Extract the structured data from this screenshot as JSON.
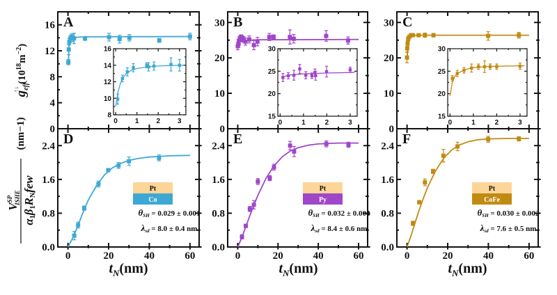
{
  "chart_data": [
    {
      "panel": "A",
      "type": "scatter",
      "color": "#3ea8d5",
      "xlim": [
        -5,
        64.5
      ],
      "ylim": [
        0,
        18
      ],
      "yticks": [
        0,
        4,
        8,
        12,
        16
      ],
      "xticks": [
        0,
        20,
        40,
        60
      ],
      "xtick_labels": false,
      "ylabel": {
        "main": "g",
        "sub": "eff",
        "sup": "↑↓",
        "unit": "(10",
        "unit_sup": "18",
        "unit_end": "m",
        "unit_end_sup": "−2",
        ")": ")"
      },
      "points": {
        "x": [
          0.2,
          0.4,
          0.7,
          1.2,
          1.8,
          2.5,
          3,
          8.4,
          20.2,
          25.4,
          30.2,
          44.9,
          60
        ],
        "y": [
          10.25,
          12.2,
          13.4,
          13.9,
          14.1,
          14.0,
          13.9,
          13.9,
          14.1,
          13.8,
          14.0,
          13.6,
          14.2
        ],
        "err": [
          0.4,
          0.8,
          0.5,
          0.5,
          0.5,
          0.6,
          0.8,
          0.3,
          0.6,
          0.6,
          0.5,
          0.3,
          0.5
        ]
      },
      "fit": {
        "x": [
          0.2,
          0.5,
          1,
          2,
          3,
          5,
          10,
          60
        ],
        "y": [
          10.0,
          12.5,
          13.5,
          13.9,
          14.0,
          14.1,
          14.15,
          14.2
        ]
      },
      "inset": {
        "xlim": [
          -0.1,
          3.3
        ],
        "ylim": [
          8,
          16
        ],
        "xticks": [
          0,
          1,
          2,
          3
        ],
        "yticks": [
          8,
          10,
          12,
          14,
          16
        ],
        "points": {
          "x": [
            0.1,
            0.32,
            0.55,
            0.83,
            1.46,
            1.55,
            1.8,
            2.6,
            3.0
          ],
          "y": [
            9.9,
            12.4,
            13.2,
            13.7,
            14.0,
            13.8,
            13.9,
            14.1,
            14.0
          ],
          "err": [
            0.6,
            0.4,
            0.5,
            0.5,
            0.3,
            0.5,
            0.5,
            0.8,
            0.7
          ]
        },
        "fit": {
          "x": [
            0,
            0.1,
            0.2,
            0.3,
            0.5,
            0.75,
            1,
            1.5,
            2,
            2.5,
            3,
            3.2
          ],
          "y": [
            9.0,
            10.6,
            11.6,
            12.3,
            13.0,
            13.4,
            13.6,
            13.8,
            13.9,
            13.95,
            14.0,
            14.0
          ]
        }
      }
    },
    {
      "panel": "B",
      "type": "scatter",
      "color": "#a046c8",
      "xlim": [
        -5,
        64.5
      ],
      "ylim": [
        0,
        33
      ],
      "yticks": [
        0,
        10,
        20,
        30
      ],
      "xticks": [
        0,
        20,
        40,
        60
      ],
      "xtick_labels": false,
      "points": {
        "x": [
          0,
          0.4,
          0.6,
          1.2,
          1.7,
          2.3,
          2.9,
          3.8,
          5.7,
          8,
          9.8,
          15.7,
          17.8,
          25.9,
          27.8,
          43.9,
          54.8
        ],
        "y": [
          23.3,
          23.9,
          24.9,
          25.5,
          25.9,
          25.4,
          25.2,
          24.6,
          25.2,
          23.6,
          24.6,
          25.9,
          25.9,
          25.9,
          25.4,
          26.2,
          24.9
        ],
        "err": [
          1,
          1,
          1,
          0.8,
          0.6,
          0.8,
          0.8,
          1,
          1,
          1.3,
          1.2,
          1,
          0.6,
          2,
          1.2,
          1.5,
          1
        ]
      },
      "fit": {
        "x": [
          0,
          1,
          3,
          10,
          60
        ],
        "y": [
          23.8,
          24.5,
          24.9,
          25.1,
          25.2
        ]
      },
      "inset": {
        "xlim": [
          -0.1,
          3.3
        ],
        "ylim": [
          15,
          30
        ],
        "xticks": [
          0,
          1,
          2,
          3
        ],
        "yticks": [
          15,
          20,
          25,
          30
        ],
        "points": {
          "x": [
            0.12,
            0.35,
            0.59,
            0.84,
            1.1,
            1.36,
            1.49,
            1.52,
            1.99,
            3.0
          ],
          "y": [
            23.6,
            24.0,
            24.1,
            25.5,
            24.1,
            24.0,
            24.7,
            24.0,
            24.9,
            25.3
          ],
          "err": [
            0.9,
            0.7,
            1.1,
            1.0,
            0.8,
            0.6,
            0.8,
            1.0,
            1.2,
            0.6
          ]
        },
        "fit": {
          "x": [
            0.1,
            0.5,
            1,
            1.5,
            2,
            3,
            3.2
          ],
          "y": [
            23.8,
            24.2,
            24.4,
            24.5,
            24.6,
            24.7,
            24.75
          ]
        }
      }
    },
    {
      "panel": "C",
      "type": "scatter",
      "color": "#c18b12",
      "xlim": [
        -5,
        64.5
      ],
      "ylim": [
        0,
        33
      ],
      "yticks": [
        0,
        10,
        20,
        30
      ],
      "xticks": [
        0,
        20,
        40,
        60
      ],
      "xtick_labels": false,
      "points": {
        "x": [
          0,
          0.1,
          0.3,
          0.6,
          1.2,
          2,
          2.9,
          5.7,
          8.8,
          13,
          39.9,
          55
        ],
        "y": [
          20.1,
          22.7,
          24.1,
          25.4,
          26.0,
          26.4,
          26.4,
          26.4,
          26.4,
          26.4,
          26.2,
          26.4
        ],
        "err": [
          1.5,
          1,
          0.8,
          0.6,
          0.5,
          0.5,
          0.4,
          0.4,
          0.6,
          0.5,
          1.2,
          0.8
        ]
      },
      "fit": {
        "x": [
          0,
          0.5,
          1,
          2,
          3,
          5,
          60
        ],
        "y": [
          19.5,
          24.5,
          25.6,
          26.1,
          26.3,
          26.4,
          26.4
        ]
      },
      "inset": {
        "xlim": [
          -0.1,
          3.3
        ],
        "ylim": [
          15,
          30
        ],
        "xticks": [
          0,
          1,
          2,
          3
        ],
        "yticks": [
          15,
          20,
          25,
          30
        ],
        "points": {
          "x": [
            0.1,
            0.31,
            0.6,
            0.92,
            1.22,
            1.48,
            1.72,
            2.0,
            3.0
          ],
          "y": [
            23.4,
            24.5,
            25.2,
            25.7,
            26.0,
            26.0,
            26.0,
            26.0,
            26.1
          ],
          "err": [
            0.6,
            0.7,
            0.6,
            0.9,
            0.6,
            1.3,
            0.6,
            0.6,
            0.7
          ]
        },
        "fit": {
          "x": [
            0,
            0.1,
            0.2,
            0.3,
            0.5,
            0.75,
            1,
            1.5,
            2,
            3,
            3.2
          ],
          "y": [
            19.5,
            22.6,
            23.8,
            24.4,
            25.0,
            25.5,
            25.8,
            26.0,
            26.1,
            26.2,
            26.2
          ]
        }
      }
    },
    {
      "panel": "D",
      "type": "scatter",
      "color": "#3ea8d5",
      "xlim": [
        -5,
        64.5
      ],
      "ylim": [
        0,
        2.8
      ],
      "yticks": [
        0,
        0.8,
        1.6,
        2.4
      ],
      "ytick_text": [
        "0.0",
        "0.8",
        "1.6",
        "2.4"
      ],
      "xticks": [
        0,
        20,
        40,
        60
      ],
      "xtick_labels": true,
      "points": {
        "x": [
          3.1,
          5,
          8,
          15,
          19.8,
          24.9,
          30,
          44.8
        ],
        "y": [
          0.27,
          0.52,
          0.92,
          1.49,
          1.82,
          1.93,
          2.03,
          2.11
        ],
        "err": [
          0.1,
          0.07,
          0.05,
          0.07,
          0.04,
          0.07,
          0.1,
          0.07
        ]
      },
      "fit": {
        "x": [
          0,
          2,
          4,
          6,
          8,
          10,
          14,
          18,
          22,
          26,
          30,
          35,
          40,
          50,
          60
        ],
        "y": [
          0,
          0.18,
          0.4,
          0.64,
          0.89,
          1.11,
          1.45,
          1.71,
          1.88,
          1.98,
          2.05,
          2.1,
          2.13,
          2.16,
          2.17
        ]
      },
      "legend": {
        "top": "Pt",
        "bottom": "Co",
        "top_color": "#fdd597"
      },
      "theta": {
        "symbol": "θ",
        "sub": "SH",
        "value": " = 0.029 ± 0.001"
      },
      "lambda": {
        "symbol": "λ",
        "sub": "sd",
        "value": " = 8.0 ± 0.4 nm"
      }
    },
    {
      "panel": "E",
      "type": "scatter",
      "color": "#a046c8",
      "xlim": [
        -5,
        64.5
      ],
      "ylim": [
        0,
        2.8
      ],
      "yticks": [
        0,
        0.8,
        1.6,
        2.4
      ],
      "ytick_text": [
        "0.0",
        "0.8",
        "1.6",
        "2.4"
      ],
      "xticks": [
        0,
        20,
        40,
        60
      ],
      "xtick_labels": true,
      "points": {
        "x": [
          2.1,
          4,
          6,
          8,
          10,
          15.9,
          18,
          26,
          28,
          44,
          55
        ],
        "y": [
          0.24,
          0.5,
          0.9,
          1.0,
          1.55,
          1.63,
          1.89,
          2.4,
          2.26,
          2.44,
          2.42
        ],
        "err": [
          0.05,
          0.04,
          0.06,
          0.1,
          0.07,
          0.06,
          0.07,
          0.1,
          0.12,
          0.07,
          0.06
        ]
      },
      "fit": {
        "x": [
          0,
          2,
          4,
          6,
          8,
          10,
          14,
          18,
          22,
          26,
          30,
          35,
          40,
          50,
          60
        ],
        "y": [
          0,
          0.22,
          0.48,
          0.74,
          0.99,
          1.22,
          1.62,
          1.92,
          2.13,
          2.27,
          2.35,
          2.41,
          2.44,
          2.46,
          2.46
        ]
      },
      "legend": {
        "top": "Pt",
        "bottom": "Py",
        "top_color": "#fdd597"
      },
      "theta": {
        "symbol": "θ",
        "sub": "SH",
        "value": " = 0.032 ± 0.004"
      },
      "lambda": {
        "symbol": "λ",
        "sub": "sd",
        "value": " = 8.4 ± 0.6 nm"
      }
    },
    {
      "panel": "F",
      "type": "scatter",
      "color": "#c18b12",
      "xlim": [
        -5,
        64.5
      ],
      "ylim": [
        0,
        2.8
      ],
      "yticks": [
        0,
        0.8,
        1.6,
        2.4
      ],
      "ytick_text": [
        "0.0",
        "0.8",
        "1.6",
        "2.4"
      ],
      "xticks": [
        0,
        20,
        40,
        60
      ],
      "xtick_labels": true,
      "points": {
        "x": [
          2.9,
          6,
          8.8,
          12.8,
          17.9,
          24.8,
          39.9,
          55
        ],
        "y": [
          0.56,
          1.06,
          1.53,
          1.79,
          2.16,
          2.38,
          2.55,
          2.56
        ],
        "err": [
          0.05,
          0.04,
          0.08,
          0.05,
          0.15,
          0.1,
          0.07,
          0.05
        ]
      },
      "fit": {
        "x": [
          0,
          2,
          4,
          6,
          8,
          10,
          14,
          18,
          22,
          26,
          30,
          35,
          40,
          50,
          60
        ],
        "y": [
          0,
          0.27,
          0.58,
          0.88,
          1.15,
          1.4,
          1.8,
          2.1,
          2.3,
          2.42,
          2.49,
          2.54,
          2.56,
          2.57,
          2.57
        ]
      },
      "legend": {
        "top": "Pt",
        "bottom": "CoFe",
        "top_color": "#fdd597"
      },
      "theta": {
        "symbol": "θ",
        "sub": "SH",
        "value": " = 0.030 ± 0.002"
      },
      "lambda": {
        "symbol": "λ",
        "sub": "sd",
        "value": " = 7.6 ± 0.5 nm"
      }
    }
  ],
  "labels": {
    "xlabel": {
      "main": "t",
      "sub": "N",
      "unit": "(nm)"
    },
    "ylabel_top": {
      "main": "g",
      "sub": "eff",
      "sup": "↑↓",
      "unit": "(10",
      "unit_sup": "18",
      "unit_mid": "m",
      "unit_mid_sup": "−2",
      "unit_end": ")"
    },
    "ylabel_bottom": {
      "num": "V",
      "num_sup": "SP",
      "num_sub": "ISHE",
      "den": "α",
      "den1": "1",
      "den2": "β",
      "den3": "1",
      "den4": "R",
      "den5": "N",
      "den6": "few",
      "unit": "(nm",
      "unit_sup": "−1",
      "unit_end": ")"
    }
  }
}
